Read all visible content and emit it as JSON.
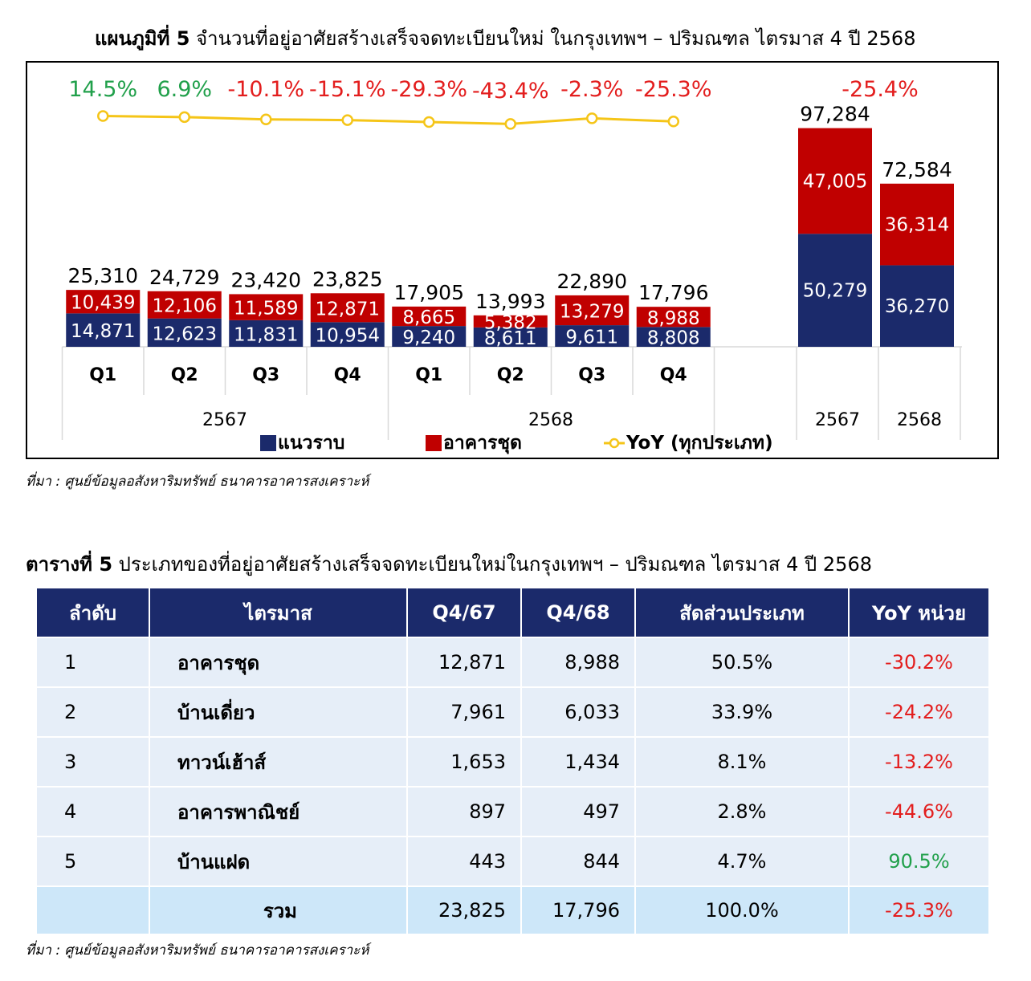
{
  "chart_title": {
    "bold": "แผนภูมิที่ 5",
    "text": " จำนวนที่อยู่อาศัยสร้างเสร็จจดทะเบียนใหม่ ในกรุงเทพฯ – ปริมณฑล ไตรมาส 4 ปี 2568"
  },
  "chart_source": "ที่มา : ศูนย์ข้อมูลอสังหาริมทรัพย์ ธนาคารอาคารสงเคราะห์",
  "colors": {
    "lowrise": "#1b2a6b",
    "condo": "#c00000",
    "yoy_line": "#f5c518",
    "positive": "#21a04b",
    "negative": "#e31e1e"
  },
  "chart_data": {
    "type": "bar",
    "stacked": true,
    "quarters": [
      "Q1",
      "Q2",
      "Q3",
      "Q4",
      "Q1",
      "Q2",
      "Q3",
      "Q4"
    ],
    "quarter_years": [
      "2567",
      "2568"
    ],
    "annual_years": [
      "2567",
      "2568"
    ],
    "series": [
      {
        "name": "แนวราบ",
        "quarterly": [
          14871,
          12623,
          11831,
          10954,
          9240,
          8611,
          9611,
          8808
        ],
        "annual": [
          50279,
          36270
        ]
      },
      {
        "name": "อาคารชุด",
        "quarterly": [
          10439,
          12106,
          11589,
          12871,
          8665,
          5382,
          13279,
          8988
        ],
        "annual": [
          47005,
          36314
        ]
      }
    ],
    "totals_quarterly": [
      "25,310",
      "24,729",
      "23,420",
      "23,825",
      "17,905",
      "13,993",
      "22,890",
      "17,796"
    ],
    "totals_annual": [
      "97,284",
      "72,584"
    ],
    "yoy": {
      "name": "YoY (ทุกประเภท)",
      "quarterly": [
        14.5,
        6.9,
        -10.1,
        -15.1,
        -29.3,
        -43.4,
        -2.3,
        -25.3
      ],
      "quarterly_labels": [
        "14.5%",
        "6.9%",
        "-10.1%",
        "-15.1%",
        "-29.3%",
        "-43.4%",
        "-2.3%",
        "-25.3%"
      ],
      "annual_label": "-25.4%"
    },
    "legend": [
      "แนวราบ",
      "อาคารชุด",
      "YoY (ทุกประเภท)"
    ],
    "legend_position": "bottom"
  },
  "table_title": {
    "bold": "ตารางที่ 5",
    "text": " ประเภทของที่อยู่อาศัยสร้างเสร็จจดทะเบียนใหม่ในกรุงเทพฯ – ปริมณฑล ไตรมาส 4 ปี 2568"
  },
  "table": {
    "headers": [
      "ลำดับ",
      "ไตรมาส",
      "Q4/67",
      "Q4/68",
      "สัดส่วนประเภท",
      "YoY หน่วย"
    ],
    "rows": [
      {
        "rank": "1",
        "type": "อาคารชุด",
        "q4_67": "12,871",
        "q4_68": "8,988",
        "share": "50.5%",
        "yoy": "-30.2%"
      },
      {
        "rank": "2",
        "type": "บ้านเดี่ยว",
        "q4_67": "7,961",
        "q4_68": "6,033",
        "share": "33.9%",
        "yoy": "-24.2%"
      },
      {
        "rank": "3",
        "type": "ทาวน์เฮ้าส์",
        "q4_67": "1,653",
        "q4_68": "1,434",
        "share": "8.1%",
        "yoy": "-13.2%"
      },
      {
        "rank": "4",
        "type": "อาคารพาณิชย์",
        "q4_67": "897",
        "q4_68": "497",
        "share": "2.8%",
        "yoy": "-44.6%"
      },
      {
        "rank": "5",
        "type": "บ้านแฝด",
        "q4_67": "443",
        "q4_68": "844",
        "share": "4.7%",
        "yoy": "90.5%"
      }
    ],
    "total": {
      "label": "รวม",
      "q4_67": "23,825",
      "q4_68": "17,796",
      "share": "100.0%",
      "yoy": "-25.3%"
    }
  },
  "table_source": "ที่มา : ศูนย์ข้อมูลอสังหาริมทรัพย์ ธนาคารอาคารสงเคราะห์"
}
